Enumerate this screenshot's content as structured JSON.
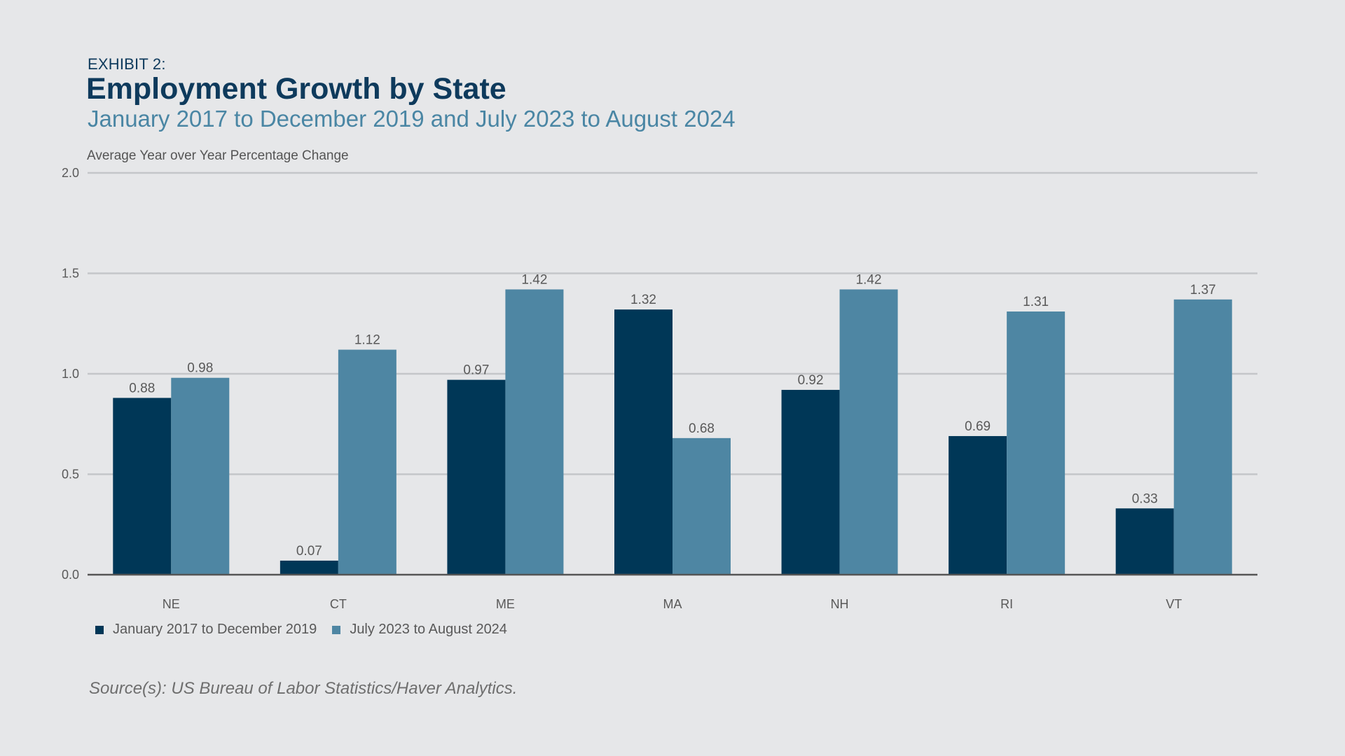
{
  "header": {
    "exhibit": "EXHIBIT 2:",
    "title": "Employment Growth by State",
    "subtitle": "January 2017 to December 2019 and July 2023 to August 2024"
  },
  "footer": {
    "source": "Source(s): US Bureau of Labor Statistics/Haver Analytics."
  },
  "colors": {
    "series1": "#003757",
    "series2": "#4e86a3",
    "grid": "#c4c6c9",
    "axis": "#555555",
    "label": "#595959"
  },
  "chart_data": {
    "type": "bar",
    "title": "Employment Growth by State",
    "subtitle": "January 2017 to December 2019 and July 2023 to August 2024",
    "ylabel": "Average Year over Year Percentage Change",
    "xlabel": "",
    "categories": [
      "NE",
      "CT",
      "ME",
      "MA",
      "NH",
      "RI",
      "VT"
    ],
    "series": [
      {
        "name": "January 2017 to December 2019",
        "values": [
          0.88,
          0.07,
          0.97,
          1.32,
          0.92,
          0.69,
          0.33
        ],
        "labels": [
          "0.88",
          "0.07",
          "0.97",
          "1.32",
          "0.92",
          "0.69",
          "0.33"
        ]
      },
      {
        "name": "July 2023 to August 2024",
        "values": [
          0.98,
          1.12,
          1.42,
          0.68,
          1.42,
          1.31,
          1.37
        ],
        "labels": [
          "0.98",
          "1.12",
          "1.42",
          "0.68",
          "1.42",
          "1.31",
          "1.37"
        ]
      }
    ],
    "ylim": [
      0,
      2.0
    ],
    "yticks": [
      0.0,
      0.5,
      1.0,
      1.5,
      2.0
    ],
    "ytick_labels": [
      "0.0",
      "0.5",
      "1.0",
      "1.5",
      "2.0"
    ],
    "grid": true,
    "legend_position": "bottom-left"
  }
}
